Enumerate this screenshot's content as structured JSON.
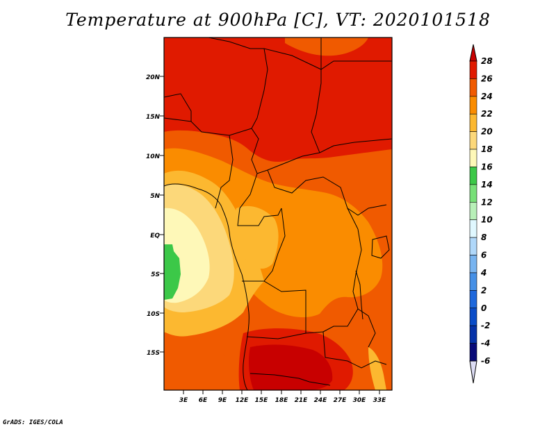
{
  "title": "Temperature at 900hPa [C], VT: 2020101518",
  "credit": "GrADS: IGES/COLA",
  "map": {
    "lat_labels": [
      "20N",
      "15N",
      "10N",
      "5N",
      "EQ",
      "5S",
      "10S",
      "15S"
    ],
    "lon_labels": [
      "3E",
      "6E",
      "9E",
      "12E",
      "15E",
      "18E",
      "21E",
      "24E",
      "27E",
      "30E",
      "33E"
    ]
  },
  "colorbar": {
    "levels": [
      "28",
      "26",
      "24",
      "22",
      "20",
      "18",
      "16",
      "14",
      "12",
      "10",
      "8",
      "6",
      "4",
      "2",
      "0",
      "-2",
      "-4",
      "-6"
    ],
    "colors": [
      "#c80000",
      "#e01a00",
      "#f05a00",
      "#fa8c00",
      "#fcb830",
      "#fcd87a",
      "#fef8b8",
      "#3cc848",
      "#78e078",
      "#b8f0b8",
      "#e0f8ff",
      "#b0d8fa",
      "#78b4f0",
      "#4690e6",
      "#1e68dc",
      "#0a4cc8",
      "#0632a8",
      "#080a78",
      "#dcdcf4"
    ]
  },
  "palette": {
    "red_dark": "#c80000",
    "red": "#e01a00",
    "orange_red": "#f05a00",
    "orange": "#fa8c00",
    "light_orange": "#fcb830",
    "yellow": "#fcd87a",
    "pale_yellow": "#fef8b8",
    "green": "#3cc848"
  }
}
